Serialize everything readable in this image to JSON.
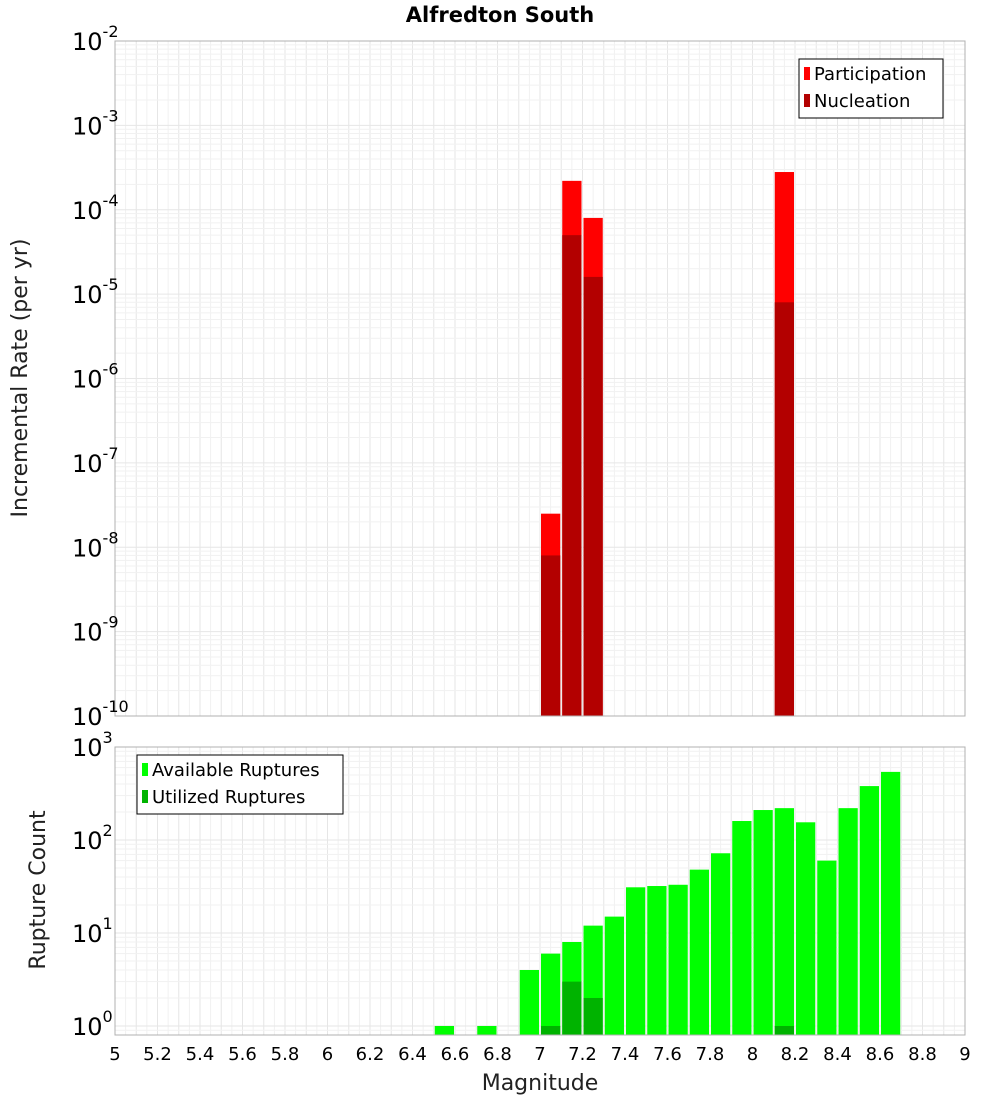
{
  "title": "Alfredton South",
  "x_axis": {
    "label": "Magnitude",
    "ticks": [
      "5",
      "5.2",
      "5.4",
      "5.6",
      "5.8",
      "6",
      "6.2",
      "6.4",
      "6.6",
      "6.8",
      "7",
      "7.2",
      "7.4",
      "7.6",
      "7.8",
      "8",
      "8.2",
      "8.4",
      "8.6",
      "8.8",
      "9"
    ]
  },
  "chart_data": [
    {
      "type": "bar",
      "name": "incremental-rate",
      "title": "Alfredton South",
      "ylabel": "Incremental Rate (per yr)",
      "xlabel": "",
      "yscale": "log",
      "ylim": [
        1e-10,
        0.01
      ],
      "xlim": [
        5,
        9
      ],
      "y_ticks": [
        {
          "base": "10",
          "exp": "-2"
        },
        {
          "base": "10",
          "exp": "-3"
        },
        {
          "base": "10",
          "exp": "-4"
        },
        {
          "base": "10",
          "exp": "-5"
        },
        {
          "base": "10",
          "exp": "-6"
        },
        {
          "base": "10",
          "exp": "-7"
        },
        {
          "base": "10",
          "exp": "-8"
        },
        {
          "base": "10",
          "exp": "-9"
        },
        {
          "base": "10",
          "exp": "-10"
        }
      ],
      "bin_width": 0.1,
      "legend": {
        "position": "top-right"
      },
      "series": [
        {
          "name": "Participation",
          "color": "#ff0000",
          "x": [
            7.05,
            7.15,
            7.25,
            8.15
          ],
          "values": [
            2.5e-08,
            0.00022,
            8e-05,
            0.00028
          ]
        },
        {
          "name": "Nucleation",
          "color": "#b30000",
          "x": [
            7.05,
            7.15,
            7.25,
            8.15
          ],
          "values": [
            8e-09,
            5e-05,
            1.6e-05,
            8e-06
          ]
        }
      ]
    },
    {
      "type": "bar",
      "name": "rupture-count",
      "title": "",
      "ylabel": "Rupture Count",
      "xlabel": "Magnitude",
      "yscale": "log",
      "ylim": [
        0.8,
        1000
      ],
      "xlim": [
        5,
        9
      ],
      "y_ticks": [
        {
          "base": "10",
          "exp": "3"
        },
        {
          "base": "10",
          "exp": "2"
        },
        {
          "base": "10",
          "exp": "1"
        },
        {
          "base": "10",
          "exp": "0"
        }
      ],
      "bin_width": 0.1,
      "legend": {
        "position": "top-left"
      },
      "series": [
        {
          "name": "Available Ruptures",
          "color": "#00ff00",
          "x": [
            6.55,
            6.75,
            6.95,
            7.05,
            7.15,
            7.25,
            7.35,
            7.45,
            7.55,
            7.65,
            7.75,
            7.85,
            7.95,
            8.05,
            8.15,
            8.25,
            8.35,
            8.45,
            8.55,
            8.65
          ],
          "values": [
            1,
            1,
            4,
            6,
            8,
            12,
            15,
            31,
            32,
            33,
            48,
            72,
            160,
            210,
            220,
            155,
            60,
            220,
            380,
            540
          ]
        },
        {
          "name": "Utilized Ruptures",
          "color": "#00b300",
          "x": [
            7.05,
            7.15,
            7.25,
            8.15
          ],
          "values": [
            1,
            3,
            2,
            1
          ]
        }
      ]
    }
  ]
}
